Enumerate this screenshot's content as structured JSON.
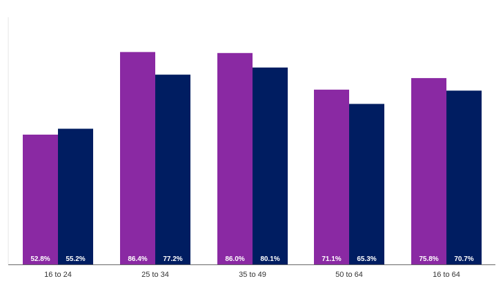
{
  "chart_data": {
    "type": "bar",
    "categories": [
      "16 to 24",
      "25 to 34",
      "35 to 49",
      "50 to 64",
      "16 to 64"
    ],
    "series": [
      {
        "values": [
          52.8,
          86.4,
          86.0,
          71.1,
          75.8
        ],
        "color": "#8a29a3",
        "labels": [
          "52.8%",
          "86.4%",
          "86.0%",
          "71.1%",
          "75.8%"
        ]
      },
      {
        "values": [
          55.2,
          77.2,
          80.1,
          65.3,
          70.7
        ],
        "color": "#001d61",
        "labels": [
          "55.2%",
          "77.2%",
          "80.1%",
          "65.3%",
          "70.7%"
        ]
      }
    ],
    "ylim": [
      0,
      100
    ],
    "grid": false,
    "legend": "none"
  }
}
